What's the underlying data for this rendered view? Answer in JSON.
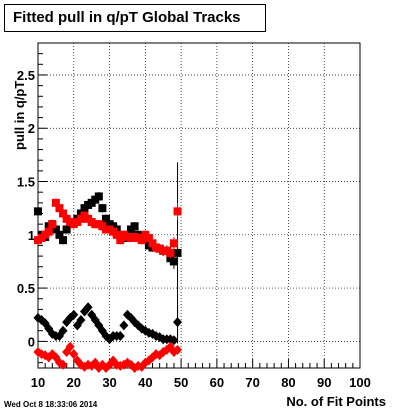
{
  "chart_data": {
    "type": "scatter",
    "title": "Fitted pull in q/pT  Global Tracks",
    "xlabel": "No. of Fit Points",
    "ylabel": "pull in q/pT",
    "xlim": [
      10,
      100
    ],
    "ylim": [
      -0.25,
      2.8
    ],
    "x_ticks": [
      "10",
      "20",
      "30",
      "40",
      "50",
      "60",
      "70",
      "80",
      "90",
      "100"
    ],
    "y_ticks": [
      "0",
      "0.5",
      "1",
      "1.5",
      "2",
      "2.5"
    ],
    "grid": true,
    "series": [
      {
        "marker": "square",
        "color": "#000000",
        "x": [
          10,
          11,
          12,
          13,
          14,
          15,
          16,
          17,
          18,
          19,
          20,
          21,
          22,
          23,
          24,
          25,
          26,
          27,
          28,
          29,
          30,
          31,
          32,
          33,
          34,
          35,
          36,
          37,
          38,
          39,
          40,
          41,
          42,
          43,
          44,
          45,
          46,
          47,
          48,
          49
        ],
        "y": [
          1.22,
          1.0,
          0.98,
          1.08,
          1.1,
          1.05,
          1.0,
          0.95,
          1.05,
          1.1,
          1.12,
          1.15,
          1.2,
          1.25,
          1.28,
          1.3,
          1.33,
          1.36,
          1.25,
          1.15,
          1.1,
          1.08,
          1.05,
          1.0,
          0.97,
          1.0,
          1.05,
          1.08,
          1.0,
          0.97,
          0.95,
          0.9,
          0.88,
          0.88,
          0.87,
          0.85,
          0.85,
          0.78,
          0.75,
          0.83
        ],
        "err": [
          0.04,
          0.04,
          0.04,
          0.04,
          0.04,
          0.04,
          0.04,
          0.04,
          0.04,
          0.04,
          0.04,
          0.04,
          0.04,
          0.04,
          0.04,
          0.04,
          0.04,
          0.04,
          0.04,
          0.04,
          0.04,
          0.04,
          0.04,
          0.04,
          0.04,
          0.04,
          0.04,
          0.04,
          0.04,
          0.04,
          0.04,
          0.04,
          0.04,
          0.04,
          0.04,
          0.05,
          0.05,
          0.06,
          0.07,
          0.85
        ]
      },
      {
        "marker": "square",
        "color": "#ff0000",
        "x": [
          10,
          11,
          12,
          13,
          14,
          15,
          16,
          17,
          18,
          19,
          20,
          21,
          22,
          23,
          24,
          25,
          26,
          27,
          28,
          29,
          30,
          31,
          32,
          33,
          34,
          35,
          36,
          37,
          38,
          39,
          40,
          41,
          42,
          43,
          44,
          45,
          46,
          47,
          48,
          49
        ],
        "y": [
          0.95,
          0.97,
          1.0,
          1.03,
          1.1,
          1.3,
          1.25,
          1.2,
          1.15,
          1.12,
          1.1,
          1.12,
          1.15,
          1.18,
          1.15,
          1.12,
          1.1,
          1.1,
          1.08,
          1.05,
          1.05,
          1.03,
          1.0,
          0.95,
          1.0,
          0.98,
          0.97,
          0.98,
          0.97,
          0.95,
          1.0,
          0.97,
          0.92,
          0.88,
          0.87,
          0.85,
          0.85,
          0.83,
          0.92,
          1.22
        ],
        "err": [
          0.04,
          0.04,
          0.04,
          0.04,
          0.04,
          0.04,
          0.04,
          0.04,
          0.04,
          0.04,
          0.04,
          0.04,
          0.04,
          0.04,
          0.04,
          0.04,
          0.04,
          0.04,
          0.04,
          0.04,
          0.04,
          0.04,
          0.04,
          0.04,
          0.04,
          0.04,
          0.04,
          0.04,
          0.04,
          0.04,
          0.04,
          0.04,
          0.04,
          0.04,
          0.04,
          0.04,
          0.05,
          0.05,
          0.06,
          0.08
        ]
      },
      {
        "marker": "diamond",
        "color": "#000000",
        "x": [
          10,
          11,
          12,
          13,
          14,
          15,
          16,
          17,
          18,
          19,
          20,
          21,
          22,
          23,
          24,
          25,
          26,
          27,
          28,
          29,
          30,
          31,
          32,
          33,
          34,
          35,
          36,
          37,
          38,
          39,
          40,
          41,
          42,
          43,
          44,
          45,
          46,
          47,
          48,
          49
        ],
        "y": [
          0.22,
          0.2,
          0.17,
          0.12,
          0.07,
          0.05,
          0.05,
          0.1,
          0.18,
          0.22,
          0.25,
          0.15,
          0.2,
          0.28,
          0.32,
          0.25,
          0.2,
          0.15,
          0.1,
          0.05,
          0.02,
          0.05,
          0.05,
          0.05,
          0.15,
          0.25,
          0.22,
          0.18,
          0.15,
          0.12,
          0.1,
          0.08,
          0.07,
          0.05,
          0.04,
          0.02,
          0.02,
          0.02,
          0.01,
          0.18
        ],
        "err": [
          0.02,
          0.02,
          0.02,
          0.02,
          0.02,
          0.02,
          0.02,
          0.02,
          0.02,
          0.02,
          0.02,
          0.02,
          0.02,
          0.02,
          0.02,
          0.02,
          0.02,
          0.02,
          0.02,
          0.02,
          0.02,
          0.02,
          0.02,
          0.02,
          0.02,
          0.02,
          0.02,
          0.02,
          0.02,
          0.02,
          0.02,
          0.02,
          0.02,
          0.02,
          0.02,
          0.02,
          0.02,
          0.03,
          0.04,
          0.18
        ]
      },
      {
        "marker": "diamond",
        "color": "#ff0000",
        "x": [
          10,
          11,
          12,
          13,
          14,
          15,
          16,
          17,
          18,
          19,
          20,
          21,
          22,
          23,
          24,
          25,
          26,
          27,
          28,
          29,
          30,
          31,
          32,
          33,
          34,
          35,
          36,
          37,
          38,
          39,
          40,
          41,
          42,
          43,
          44,
          45,
          46,
          47,
          48,
          49
        ],
        "y": [
          -0.1,
          -0.12,
          -0.13,
          -0.15,
          -0.12,
          -0.15,
          -0.2,
          -0.22,
          -0.1,
          -0.05,
          -0.12,
          -0.18,
          -0.22,
          -0.24,
          -0.22,
          -0.23,
          -0.2,
          -0.25,
          -0.22,
          -0.25,
          -0.22,
          -0.18,
          -0.22,
          -0.23,
          -0.22,
          -0.2,
          -0.22,
          -0.25,
          -0.23,
          -0.24,
          -0.2,
          -0.18,
          -0.15,
          -0.12,
          -0.13,
          -0.1,
          -0.08,
          -0.05,
          -0.1,
          -0.08
        ],
        "err": [
          0.02,
          0.02,
          0.02,
          0.02,
          0.02,
          0.02,
          0.02,
          0.02,
          0.02,
          0.02,
          0.02,
          0.02,
          0.02,
          0.02,
          0.02,
          0.02,
          0.02,
          0.02,
          0.02,
          0.02,
          0.02,
          0.02,
          0.02,
          0.02,
          0.02,
          0.02,
          0.02,
          0.02,
          0.02,
          0.02,
          0.02,
          0.02,
          0.02,
          0.02,
          0.02,
          0.02,
          0.02,
          0.03,
          0.03,
          0.04
        ]
      }
    ]
  },
  "timestamp": "Wed Oct  8 18:33:06 2014"
}
